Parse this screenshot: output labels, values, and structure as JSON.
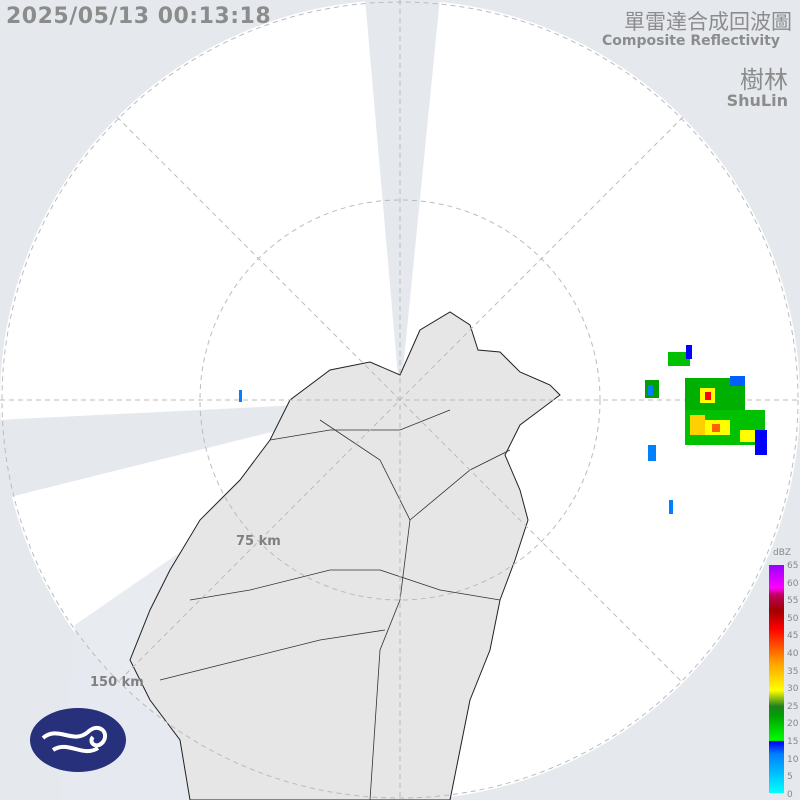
{
  "header": {
    "timestamp": "2025/05/13 00:13:18",
    "title_zh": "單雷達合成回波圖",
    "title_en": "Composite Reflectivity",
    "site_zh": "樹林",
    "site_en": "ShuLin"
  },
  "range_rings": [
    {
      "label": "75 km"
    },
    {
      "label": "150 km"
    }
  ],
  "legend": {
    "unit": "dBZ",
    "ticks": [
      "65",
      "60",
      "55",
      "50",
      "45",
      "40",
      "35",
      "30",
      "25",
      "20",
      "15",
      "10",
      "5",
      "0"
    ]
  },
  "colors": {
    "background": "#e5e9ee",
    "radar_area": "#ffffff",
    "land": "#e6e6e6",
    "logo": "#27307a"
  },
  "logo": {
    "name": "cwa-logo-icon"
  }
}
